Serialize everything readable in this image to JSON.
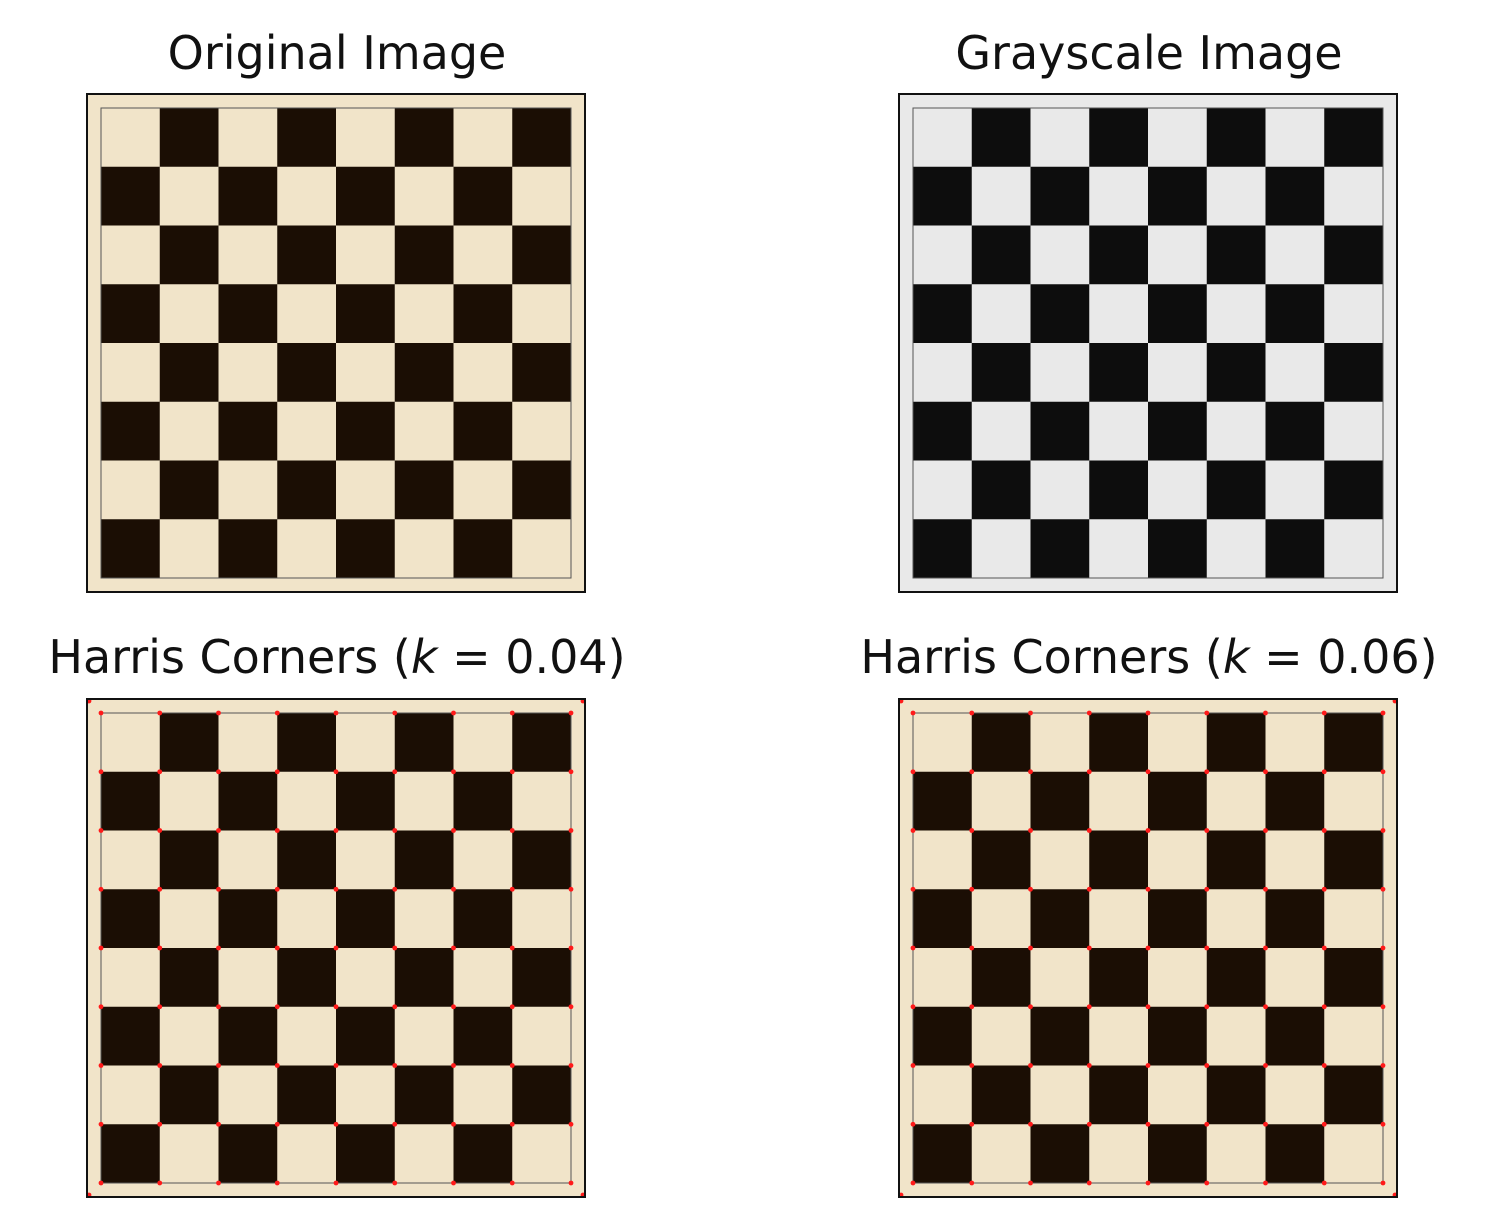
{
  "panels": [
    {
      "id": "original",
      "title": "Original Image",
      "light": "#f1e4c9",
      "dark": "#1b0e04",
      "corners": false
    },
    {
      "id": "grayscale",
      "title": "Grayscale Image",
      "light": "#e9e9e9",
      "dark": "#0d0d0d",
      "corners": false
    },
    {
      "id": "harris-004",
      "title_prefix": "Harris Corners (",
      "title_var": "k",
      "title_eq": " = 0.04)",
      "light": "#f1e4c9",
      "dark": "#1b0e04",
      "corners": true
    },
    {
      "id": "harris-006",
      "title_prefix": "Harris Corners (",
      "title_var": "k",
      "title_eq": " = 0.06)",
      "light": "#f1e4c9",
      "dark": "#1b0e04",
      "corners": true
    }
  ],
  "board": {
    "squares_per_side": 8
  },
  "corner_marker_color": "#ff1a1a"
}
